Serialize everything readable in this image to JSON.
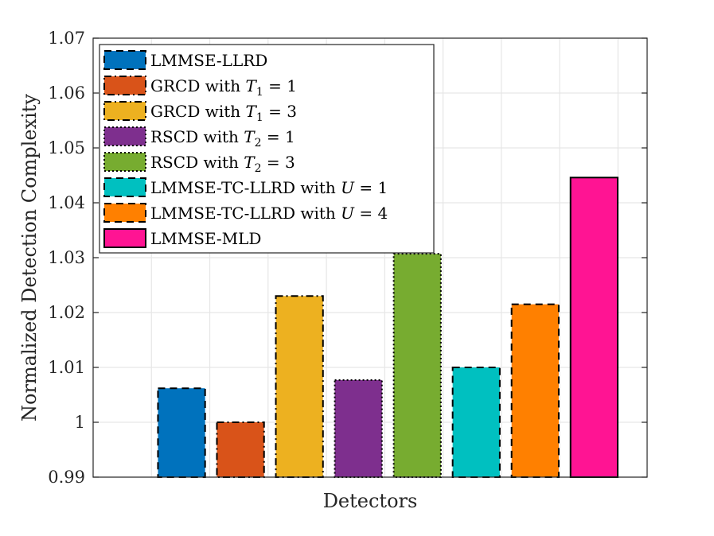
{
  "chart_data": {
    "type": "bar",
    "title": "",
    "xlabel": "Detectors",
    "ylabel": "Normalized Detection Complexity",
    "ylim": [
      0.99,
      1.07
    ],
    "yticks": [
      0.99,
      1,
      1.01,
      1.02,
      1.03,
      1.04,
      1.05,
      1.06,
      1.07
    ],
    "ytick_labels": [
      "0.99",
      "1",
      "1.01",
      "1.02",
      "1.03",
      "1.04",
      "1.05",
      "1.06",
      "1.07"
    ],
    "grid": true,
    "legend_position": "top-left",
    "series": [
      {
        "name": "LMMSE-LLRD",
        "value": 1.0062,
        "color": "#0072BD",
        "dash": "dashed"
      },
      {
        "name": "GRCD with T1 = 1",
        "value": 1.0,
        "color": "#D95319",
        "dash": "dashdot"
      },
      {
        "name": "GRCD with T1 = 3",
        "value": 1.023,
        "color": "#EDB120",
        "dash": "dashdot"
      },
      {
        "name": "RSCD with T2 = 1",
        "value": 1.0077,
        "color": "#7E2F8E",
        "dash": "dotted"
      },
      {
        "name": "RSCD with T2 = 3",
        "value": 1.0307,
        "color": "#77AC30",
        "dash": "dotted"
      },
      {
        "name": "LMMSE-TC-LLRD with U = 1",
        "value": 1.01,
        "color": "#00C0C0",
        "dash": "dashed"
      },
      {
        "name": "LMMSE-TC-LLRD with U = 4",
        "value": 1.0215,
        "color": "#FF8000",
        "dash": "dashed"
      },
      {
        "name": "LMMSE-MLD",
        "value": 1.0446,
        "color": "#FF1493",
        "dash": "solid"
      }
    ]
  },
  "legend": {
    "items": [
      {
        "base": "LMMSE-LLRD",
        "var": "",
        "sub": "",
        "eq": ""
      },
      {
        "base": "GRCD with ",
        "var": "T",
        "sub": "1",
        "eq": " = 1"
      },
      {
        "base": "GRCD with ",
        "var": "T",
        "sub": "1",
        "eq": " = 3"
      },
      {
        "base": "RSCD with ",
        "var": "T",
        "sub": "2",
        "eq": " = 1"
      },
      {
        "base": "RSCD with ",
        "var": "T",
        "sub": "2",
        "eq": " = 3"
      },
      {
        "base": "LMMSE-TC-LLRD with ",
        "var": "U",
        "sub": "",
        "eq": " = 1"
      },
      {
        "base": "LMMSE-TC-LLRD with ",
        "var": "U",
        "sub": "",
        "eq": " = 4"
      },
      {
        "base": "LMMSE-MLD",
        "var": "",
        "sub": "",
        "eq": ""
      }
    ]
  }
}
